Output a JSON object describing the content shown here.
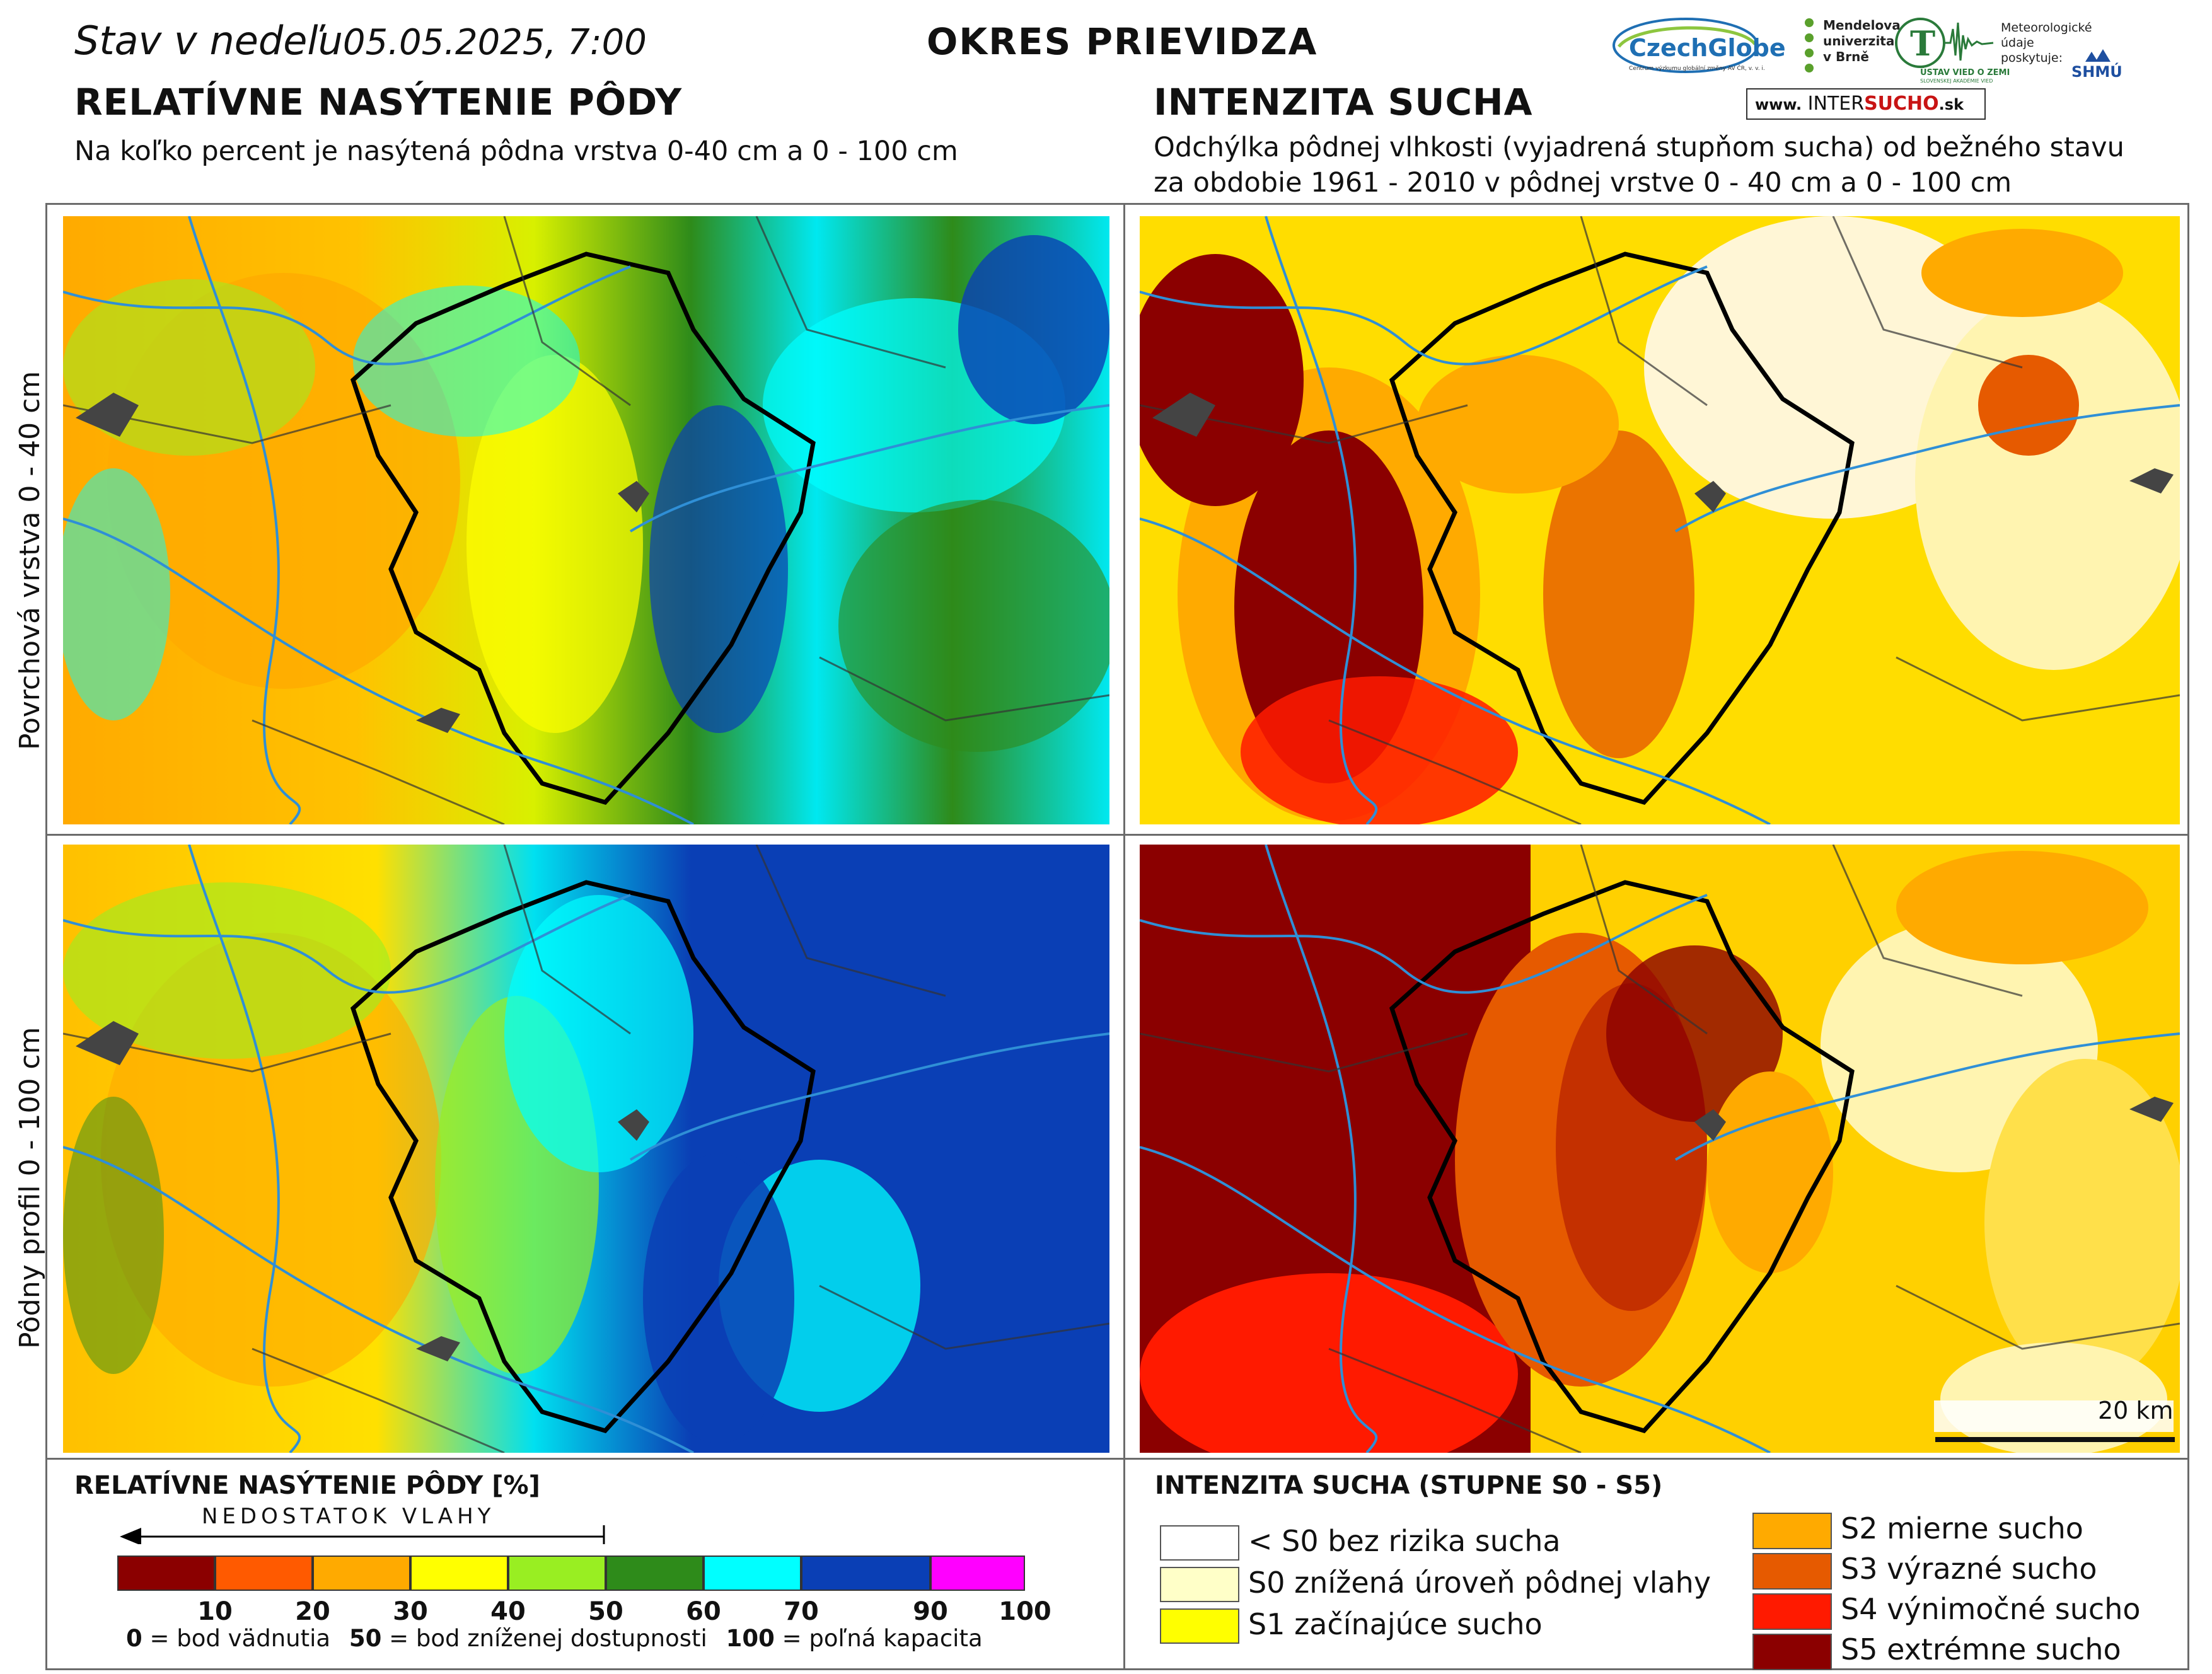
{
  "header": {
    "status_label": "Stav v nedeľu",
    "status_date": "05.05.2025, 7:00",
    "region": "OKRES PRIEVIDZA"
  },
  "left_section": {
    "title": "RELATÍVNE NASÝTENIE PÔDY",
    "subtitle": "Na koľko percent je nasýtená pôdna vrstva 0-40 cm a 0 - 100 cm"
  },
  "right_section": {
    "title": "INTENZITA SUCHA",
    "subtitle_line1": "Odchýlka pôdnej vlhkosti (vyjadrená stupňom sucha) od bežného stavu",
    "subtitle_line2": "za obdobie 1961 - 2010 v pôdnej vrstve 0 - 40 cm a 0 - 100 cm"
  },
  "row_labels": {
    "top": "Povrchová vrstva 0 - 40 cm",
    "bottom": "Pôdny profil 0 - 100 cm"
  },
  "logos": {
    "czechglobe": "CzechGlobe",
    "czechglobe_sub": "Centrum výzkumu globální změny AV ČR, v. v. i.",
    "mendel": "Mendelova univerzita v Brně",
    "uvz": "ÚSTAV VIED O ZEMI",
    "uvz_sub": "SLOVENSKEJ AKADÉMIE VIED",
    "meteo": "Meteorologické údaje poskytuje:",
    "shmu": "SHMÚ",
    "intersucho_prefix": "www.",
    "intersucho_a": "INTER",
    "intersucho_b": "SUCHO",
    "intersucho_c": ".sk"
  },
  "scale_bar": {
    "label": "20 km"
  },
  "legend_saturation": {
    "title": "RELATÍVNE NASÝTENIE PÔDY [%]",
    "arrow_label": "NEDOSTATOK VLAHY",
    "bins": [
      {
        "color": "#8b0000"
      },
      {
        "color": "#ff5a00"
      },
      {
        "color": "#ffaa00"
      },
      {
        "color": "#ffff00"
      },
      {
        "color": "#99ee22"
      },
      {
        "color": "#2e8b1a"
      },
      {
        "color": "#00ffff"
      },
      {
        "color": "#0a3fb5"
      },
      {
        "color": "#ff00ff"
      }
    ],
    "ticks": [
      "10",
      "20",
      "30",
      "40",
      "50",
      "60",
      "70",
      "90",
      "100"
    ],
    "note_0_value": "0",
    "note_0_text": " = bod vädnutia",
    "note_50_value": "50",
    "note_50_text": " = bod zníženej dostupnosti",
    "note_100_value": "100",
    "note_100_text": " = poľná kapacita"
  },
  "legend_drought": {
    "title": "INTENZITA SUCHA (STUPNE S0 - S5)",
    "items": [
      {
        "label": "< S0 bez rizika sucha",
        "color": "#ffffff"
      },
      {
        "label": "S0 znížená úroveň pôdnej vlahy",
        "color": "#ffffc8"
      },
      {
        "label": "S1 začínajúce sucho",
        "color": "#ffff00"
      },
      {
        "label": "S2 mierne sucho",
        "color": "#ffaa00"
      },
      {
        "label": "S3 výrazné sucho",
        "color": "#e65a00"
      },
      {
        "label": "S4 výnimočné sucho",
        "color": "#ff1a00"
      },
      {
        "label": "S5 extrémne sucho",
        "color": "#8b0000"
      }
    ]
  }
}
